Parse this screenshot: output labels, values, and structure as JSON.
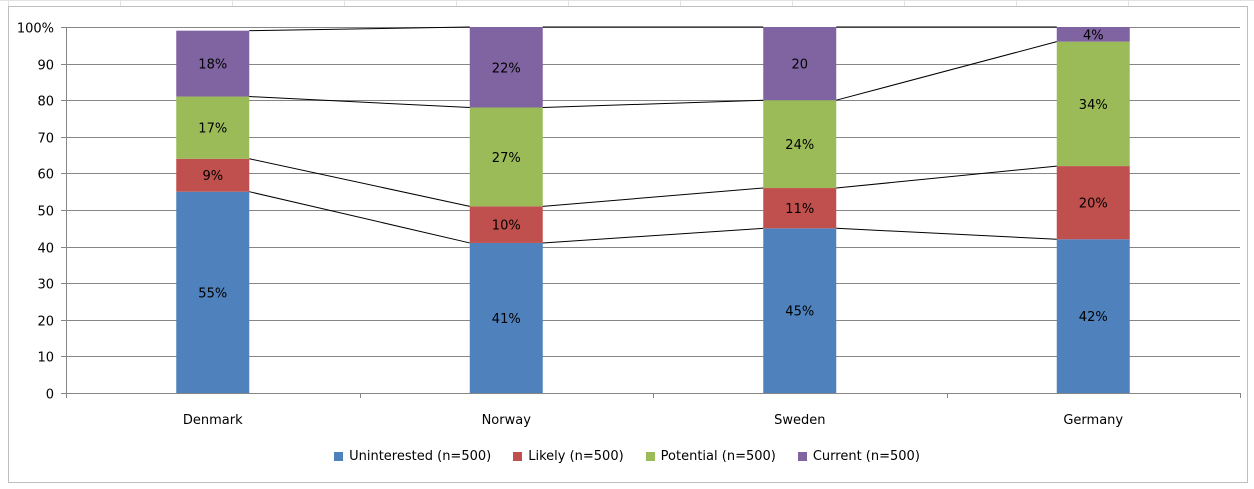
{
  "chart_data": {
    "type": "bar",
    "stacked": true,
    "categories": [
      "Denmark",
      "Norway",
      "Sweden",
      "Germany"
    ],
    "series": [
      {
        "name": "Uninterested (n=500)",
        "color": "#4f81bd",
        "values": [
          55,
          41,
          45,
          42
        ],
        "labels": [
          "55%",
          "41%",
          "45%",
          "42%"
        ]
      },
      {
        "name": "Likely (n=500)",
        "color": "#c0504d",
        "values": [
          9,
          10,
          11,
          20
        ],
        "labels": [
          "9%",
          "10%",
          "11%",
          "20%"
        ]
      },
      {
        "name": "Potential (n=500)",
        "color": "#9bbb59",
        "values": [
          17,
          27,
          24,
          34
        ],
        "labels": [
          "17%",
          "27%",
          "24%",
          "34%"
        ]
      },
      {
        "name": "Current (n=500)",
        "color": "#8064a2",
        "values": [
          18,
          22,
          20,
          4
        ],
        "labels": [
          "18%",
          "22%",
          "20",
          "4%"
        ]
      }
    ],
    "y_ticks": [
      "0",
      "10",
      "20",
      "30",
      "40",
      "50",
      "60",
      "70",
      "80",
      "90",
      "100%"
    ],
    "ylim": [
      0,
      100
    ],
    "grid": true,
    "series_lines": true,
    "legend_position": "bottom"
  }
}
